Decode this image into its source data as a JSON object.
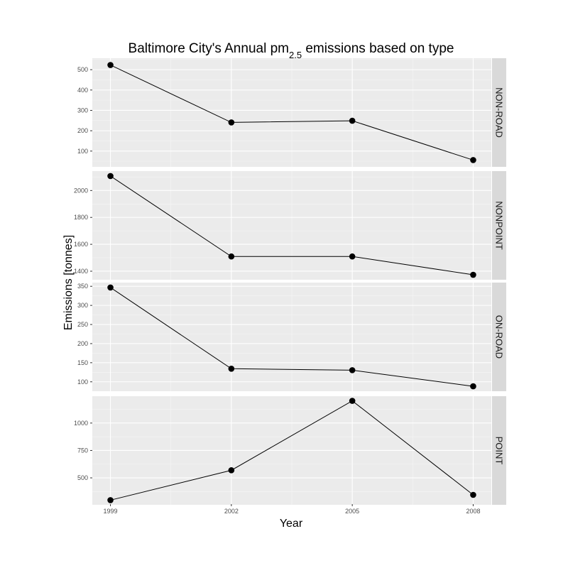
{
  "chart_data": {
    "type": "line",
    "title": "Baltimore City's Annual pm",
    "title_subscript": "2.5",
    "title_suffix": " emissions based on type",
    "xlabel": "Year",
    "ylabel": "Emissions [tonnes]",
    "x": [
      1999,
      2002,
      2005,
      2008
    ],
    "x_tick_labels": [
      "1999",
      "2002",
      "2005",
      "2008"
    ],
    "xlim": [
      1998.55,
      2008.45
    ],
    "grid": true,
    "facet_direction": "rows",
    "free_y_scales": true,
    "colors": {
      "panel_background": "#ebebeb",
      "strip_background": "#d9d9d9",
      "series": "#000000"
    },
    "panels": [
      {
        "label": "NON-ROAD",
        "values": [
          522.94,
          240.85,
          248.93,
          55.82
        ],
        "ylim": [
          22.5,
          556.3
        ],
        "y_ticks": [
          100,
          200,
          300,
          400,
          500
        ],
        "y_tick_labels": [
          "100",
          "200",
          "300",
          "400",
          "500"
        ]
      },
      {
        "label": "NONPOINT",
        "values": [
          2107.63,
          1509.5,
          1509.5,
          1373.21
        ],
        "ylim": [
          1336.5,
          2144.3
        ],
        "y_ticks": [
          1400,
          1600,
          1800,
          2000
        ],
        "y_tick_labels": [
          "1400",
          "1600",
          "1800",
          "2000"
        ]
      },
      {
        "label": "ON-ROAD",
        "values": [
          346.82,
          134.31,
          130.43,
          88.28
        ],
        "ylim": [
          75.4,
          359.7
        ],
        "y_ticks": [
          100,
          150,
          200,
          250,
          300,
          350
        ],
        "y_tick_labels": [
          "100",
          "150",
          "200",
          "250",
          "300",
          "350"
        ]
      },
      {
        "label": "POINT",
        "values": [
          296.8,
          569.26,
          1202.49,
          344.97
        ],
        "ylim": [
          254.3,
          1245.0
        ],
        "y_ticks": [
          500,
          750,
          1000
        ],
        "y_tick_labels": [
          "500",
          "750",
          "1000"
        ]
      }
    ]
  }
}
